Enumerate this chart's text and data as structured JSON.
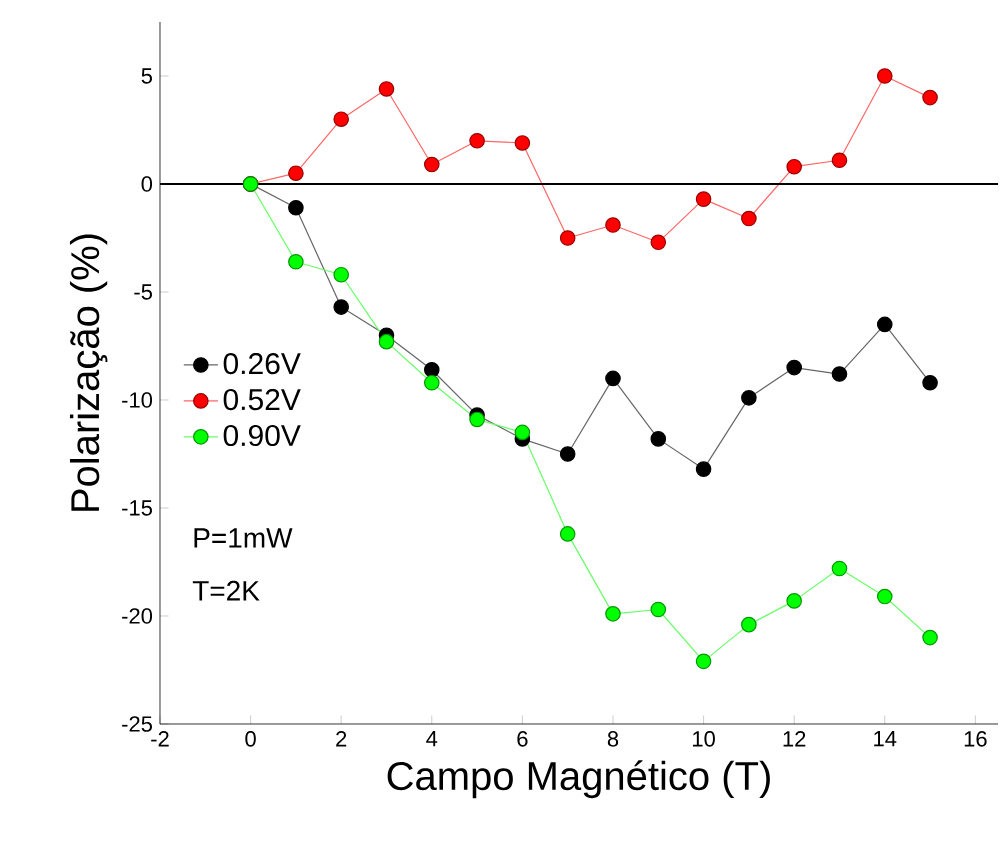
{
  "chart_data": {
    "type": "line",
    "xlabel": "Campo Magnético (T)",
    "ylabel": "Polarização (%)",
    "x": [
      0,
      1,
      2,
      3,
      4,
      5,
      6,
      7,
      8,
      9,
      10,
      11,
      12,
      13,
      14,
      15
    ],
    "series": [
      {
        "name": "0.26V",
        "color": "#000000",
        "values": [
          0,
          -1.1,
          -5.7,
          -7.0,
          -8.6,
          -10.7,
          -11.8,
          -12.5,
          -9.0,
          -11.8,
          -13.2,
          -9.9,
          -8.5,
          -8.8,
          -6.5,
          -9.2
        ]
      },
      {
        "name": "0.52V",
        "color": "#ff0000",
        "values": [
          0,
          0.5,
          3.0,
          4.4,
          0.9,
          2.0,
          1.9,
          -2.5,
          -1.9,
          -2.7,
          -0.7,
          -1.6,
          0.8,
          1.1,
          5.0,
          4.0
        ]
      },
      {
        "name": "0.90V",
        "color": "#00ff00",
        "values": [
          0,
          -3.6,
          -4.2,
          -7.3,
          -9.2,
          -10.9,
          -11.5,
          -16.2,
          -19.9,
          -19.7,
          -22.1,
          -20.4,
          -19.3,
          -17.8,
          -19.1,
          -21.0
        ]
      }
    ],
    "xlim": [
      -2,
      16.5
    ],
    "ylim": [
      -25,
      7.5
    ],
    "xticks": [
      -2,
      0,
      2,
      4,
      6,
      8,
      10,
      12,
      14,
      16
    ],
    "yticks": [
      -25,
      -20,
      -15,
      -10,
      -5,
      0,
      5
    ],
    "ref_lines": [
      {
        "axis": "y",
        "value": 0,
        "color": "#000000"
      }
    ],
    "annotations": [
      "P=1mW",
      "T=2K"
    ],
    "legend": "bottom left",
    "marker": "circle",
    "line_style": "solid",
    "grid": false
  }
}
